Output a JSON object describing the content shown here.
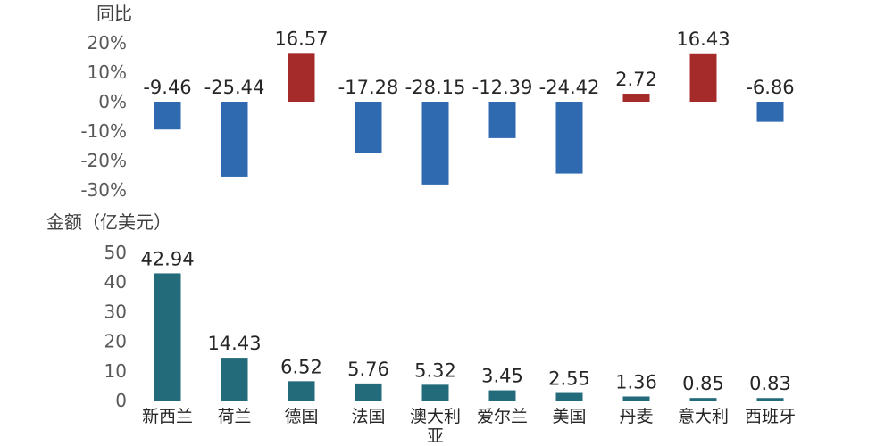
{
  "chart_data": [
    {
      "type": "bar",
      "ylabel": "同比",
      "categories": [
        "新西兰",
        "荷兰",
        "德国",
        "法国",
        "澳大利亚",
        "爱尔兰",
        "美国",
        "丹麦",
        "意大利",
        "西班牙"
      ],
      "values": [
        -9.46,
        -25.44,
        16.57,
        -17.28,
        -28.15,
        -12.39,
        -24.42,
        2.72,
        16.43,
        -6.86
      ],
      "data_labels": [
        "-9.46",
        "-25.44",
        "16.57",
        "-17.28",
        "-28.15",
        "-12.39",
        "-24.42",
        "2.72",
        "16.43",
        "-6.86"
      ],
      "ylim": [
        -30,
        20
      ],
      "y_ticks": [
        20,
        10,
        0,
        -10,
        -20,
        -30
      ],
      "y_tick_labels": [
        "20%",
        "10%",
        "0%",
        "-10%",
        "-20%",
        "-30%"
      ],
      "colors": {
        "positive": "#A52A2A",
        "negative": "#2F6AB1"
      },
      "grid": false
    },
    {
      "type": "bar",
      "ylabel": "金额（亿美元）",
      "categories": [
        "新西兰",
        "荷兰",
        "德国",
        "法国",
        "澳大利亚",
        "爱尔兰",
        "美国",
        "丹麦",
        "意大利",
        "西班牙"
      ],
      "category_labels": [
        "新西兰",
        "荷兰",
        "德国",
        "法国",
        "澳大利\n亚",
        "爱尔兰",
        "美国",
        "丹麦",
        "意大利",
        "西班牙"
      ],
      "values": [
        42.94,
        14.43,
        6.52,
        5.76,
        5.32,
        3.45,
        2.55,
        1.36,
        0.85,
        0.83
      ],
      "data_labels": [
        "42.94",
        "14.43",
        "6.52",
        "5.76",
        "5.32",
        "3.45",
        "2.55",
        "1.36",
        "0.85",
        "0.83"
      ],
      "ylim": [
        0,
        50
      ],
      "y_ticks": [
        50,
        40,
        30,
        20,
        10,
        0
      ],
      "y_tick_labels": [
        "50",
        "40",
        "30",
        "20",
        "10",
        "0"
      ],
      "colors": {
        "bar": "#236B7A"
      },
      "grid": false
    }
  ]
}
